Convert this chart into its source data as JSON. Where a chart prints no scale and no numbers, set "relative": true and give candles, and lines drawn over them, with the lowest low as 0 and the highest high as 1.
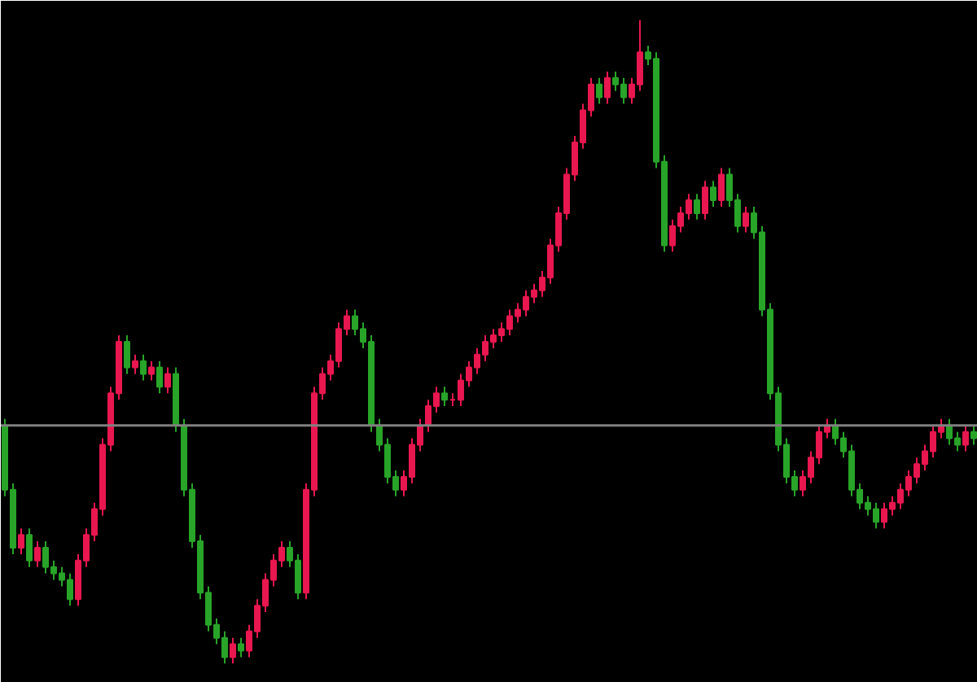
{
  "chart_data": {
    "type": "candlestick",
    "relative": true,
    "grid": false,
    "categories": [
      null,
      null,
      null,
      null,
      null,
      null,
      null,
      null,
      null,
      null,
      null,
      null,
      null,
      null,
      null,
      null,
      null,
      null,
      null,
      null,
      null,
      null,
      null,
      null,
      null,
      null,
      null,
      null,
      null,
      null,
      null,
      null,
      null,
      null,
      null,
      null,
      null,
      null,
      null,
      null,
      null,
      null,
      null,
      null,
      null,
      null,
      null,
      null,
      null,
      null,
      null,
      null,
      null,
      null,
      null,
      null,
      null,
      null,
      null,
      null,
      null,
      null,
      null,
      null,
      null,
      null,
      null,
      null,
      null,
      null,
      null,
      null,
      null,
      null,
      null,
      null,
      null,
      null,
      null,
      null,
      null,
      null,
      null,
      null,
      null,
      null,
      null,
      null,
      null,
      null,
      null,
      null,
      null,
      null,
      null,
      null,
      null,
      null,
      null,
      null,
      null,
      null,
      null,
      null,
      null,
      null,
      null,
      null,
      null,
      null,
      null,
      null,
      null,
      null,
      null,
      null,
      null,
      null,
      null,
      null
    ],
    "ohlc": [
      [
        0.37,
        0.38,
        0.26,
        0.27
      ],
      [
        0.27,
        0.28,
        0.17,
        0.18
      ],
      [
        0.18,
        0.21,
        0.17,
        0.2
      ],
      [
        0.2,
        0.21,
        0.15,
        0.16
      ],
      [
        0.16,
        0.19,
        0.15,
        0.18
      ],
      [
        0.18,
        0.19,
        0.14,
        0.15
      ],
      [
        0.15,
        0.16,
        0.13,
        0.14
      ],
      [
        0.14,
        0.15,
        0.12,
        0.13
      ],
      [
        0.13,
        0.14,
        0.09,
        0.1
      ],
      [
        0.1,
        0.17,
        0.09,
        0.16
      ],
      [
        0.16,
        0.21,
        0.15,
        0.2
      ],
      [
        0.2,
        0.25,
        0.19,
        0.24
      ],
      [
        0.24,
        0.35,
        0.23,
        0.34
      ],
      [
        0.34,
        0.43,
        0.33,
        0.42
      ],
      [
        0.42,
        0.51,
        0.41,
        0.5
      ],
      [
        0.5,
        0.51,
        0.45,
        0.46
      ],
      [
        0.46,
        0.48,
        0.45,
        0.47
      ],
      [
        0.47,
        0.48,
        0.44,
        0.45
      ],
      [
        0.45,
        0.47,
        0.44,
        0.46
      ],
      [
        0.46,
        0.47,
        0.42,
        0.43
      ],
      [
        0.43,
        0.46,
        0.42,
        0.45
      ],
      [
        0.45,
        0.46,
        0.36,
        0.37
      ],
      [
        0.37,
        0.38,
        0.26,
        0.27
      ],
      [
        0.27,
        0.28,
        0.18,
        0.19
      ],
      [
        0.19,
        0.2,
        0.1,
        0.11
      ],
      [
        0.11,
        0.12,
        0.05,
        0.06
      ],
      [
        0.06,
        0.07,
        0.03,
        0.04
      ],
      [
        0.04,
        0.05,
        0.0,
        0.01
      ],
      [
        0.01,
        0.04,
        0.0,
        0.03
      ],
      [
        0.03,
        0.04,
        0.01,
        0.02
      ],
      [
        0.02,
        0.06,
        0.01,
        0.05
      ],
      [
        0.05,
        0.1,
        0.04,
        0.09
      ],
      [
        0.09,
        0.14,
        0.08,
        0.13
      ],
      [
        0.13,
        0.17,
        0.12,
        0.16
      ],
      [
        0.16,
        0.19,
        0.15,
        0.18
      ],
      [
        0.18,
        0.19,
        0.15,
        0.16
      ],
      [
        0.16,
        0.17,
        0.1,
        0.11
      ],
      [
        0.11,
        0.28,
        0.1,
        0.27
      ],
      [
        0.27,
        0.43,
        0.26,
        0.42
      ],
      [
        0.42,
        0.46,
        0.41,
        0.45
      ],
      [
        0.45,
        0.48,
        0.44,
        0.47
      ],
      [
        0.47,
        0.53,
        0.46,
        0.52
      ],
      [
        0.52,
        0.55,
        0.51,
        0.54
      ],
      [
        0.54,
        0.55,
        0.51,
        0.52
      ],
      [
        0.52,
        0.53,
        0.49,
        0.5
      ],
      [
        0.5,
        0.51,
        0.36,
        0.37
      ],
      [
        0.37,
        0.38,
        0.33,
        0.34
      ],
      [
        0.34,
        0.35,
        0.28,
        0.29
      ],
      [
        0.29,
        0.3,
        0.26,
        0.27
      ],
      [
        0.27,
        0.3,
        0.26,
        0.29
      ],
      [
        0.29,
        0.35,
        0.28,
        0.34
      ],
      [
        0.34,
        0.38,
        0.33,
        0.37
      ],
      [
        0.37,
        0.41,
        0.36,
        0.4
      ],
      [
        0.4,
        0.43,
        0.39,
        0.42
      ],
      [
        0.42,
        0.43,
        0.4,
        0.41
      ],
      [
        0.41,
        0.42,
        0.4,
        0.41
      ],
      [
        0.41,
        0.45,
        0.4,
        0.44
      ],
      [
        0.44,
        0.47,
        0.43,
        0.46
      ],
      [
        0.46,
        0.49,
        0.45,
        0.48
      ],
      [
        0.48,
        0.51,
        0.47,
        0.5
      ],
      [
        0.5,
        0.52,
        0.49,
        0.51
      ],
      [
        0.51,
        0.53,
        0.5,
        0.52
      ],
      [
        0.52,
        0.55,
        0.51,
        0.54
      ],
      [
        0.54,
        0.56,
        0.53,
        0.55
      ],
      [
        0.55,
        0.58,
        0.54,
        0.57
      ],
      [
        0.57,
        0.59,
        0.56,
        0.58
      ],
      [
        0.58,
        0.61,
        0.57,
        0.6
      ],
      [
        0.6,
        0.66,
        0.59,
        0.65
      ],
      [
        0.65,
        0.71,
        0.64,
        0.7
      ],
      [
        0.7,
        0.77,
        0.69,
        0.76
      ],
      [
        0.76,
        0.82,
        0.75,
        0.81
      ],
      [
        0.81,
        0.87,
        0.8,
        0.86
      ],
      [
        0.86,
        0.91,
        0.85,
        0.9
      ],
      [
        0.9,
        0.91,
        0.87,
        0.88
      ],
      [
        0.88,
        0.92,
        0.87,
        0.91
      ],
      [
        0.91,
        0.92,
        0.89,
        0.9
      ],
      [
        0.9,
        0.91,
        0.87,
        0.88
      ],
      [
        0.88,
        0.91,
        0.87,
        0.9
      ],
      [
        0.9,
        1.0,
        0.89,
        0.95
      ],
      [
        0.95,
        0.96,
        0.93,
        0.94
      ],
      [
        0.94,
        0.95,
        0.77,
        0.78
      ],
      [
        0.78,
        0.79,
        0.64,
        0.65
      ],
      [
        0.65,
        0.69,
        0.64,
        0.68
      ],
      [
        0.68,
        0.71,
        0.67,
        0.7
      ],
      [
        0.7,
        0.73,
        0.69,
        0.72
      ],
      [
        0.72,
        0.73,
        0.69,
        0.7
      ],
      [
        0.7,
        0.75,
        0.69,
        0.74
      ],
      [
        0.74,
        0.75,
        0.71,
        0.72
      ],
      [
        0.72,
        0.77,
        0.71,
        0.76
      ],
      [
        0.76,
        0.77,
        0.71,
        0.72
      ],
      [
        0.72,
        0.73,
        0.67,
        0.68
      ],
      [
        0.68,
        0.71,
        0.67,
        0.7
      ],
      [
        0.7,
        0.71,
        0.66,
        0.67
      ],
      [
        0.67,
        0.68,
        0.54,
        0.55
      ],
      [
        0.55,
        0.56,
        0.41,
        0.42
      ],
      [
        0.42,
        0.43,
        0.33,
        0.34
      ],
      [
        0.34,
        0.35,
        0.28,
        0.29
      ],
      [
        0.29,
        0.3,
        0.26,
        0.27
      ],
      [
        0.27,
        0.3,
        0.26,
        0.29
      ],
      [
        0.29,
        0.33,
        0.28,
        0.32
      ],
      [
        0.32,
        0.37,
        0.31,
        0.36
      ],
      [
        0.36,
        0.38,
        0.35,
        0.37
      ],
      [
        0.37,
        0.38,
        0.34,
        0.35
      ],
      [
        0.35,
        0.36,
        0.32,
        0.33
      ],
      [
        0.33,
        0.34,
        0.26,
        0.27
      ],
      [
        0.27,
        0.28,
        0.24,
        0.25
      ],
      [
        0.25,
        0.26,
        0.23,
        0.24
      ],
      [
        0.24,
        0.25,
        0.21,
        0.22
      ],
      [
        0.22,
        0.25,
        0.21,
        0.24
      ],
      [
        0.24,
        0.26,
        0.23,
        0.25
      ],
      [
        0.25,
        0.28,
        0.24,
        0.27
      ],
      [
        0.27,
        0.3,
        0.26,
        0.29
      ],
      [
        0.29,
        0.32,
        0.28,
        0.31
      ],
      [
        0.31,
        0.34,
        0.3,
        0.33
      ],
      [
        0.33,
        0.37,
        0.32,
        0.36
      ],
      [
        0.36,
        0.38,
        0.35,
        0.37
      ],
      [
        0.37,
        0.38,
        0.34,
        0.35
      ],
      [
        0.35,
        0.36,
        0.33,
        0.34
      ],
      [
        0.34,
        0.37,
        0.33,
        0.36
      ],
      [
        0.36,
        0.37,
        0.34,
        0.35
      ]
    ],
    "colors": [
      "#28a428",
      "#28a428",
      "#e8174f",
      "#28a428",
      "#e8174f",
      "#28a428",
      "#28a428",
      "#28a428",
      "#28a428",
      "#e8174f",
      "#e8174f",
      "#e8174f",
      "#e8174f",
      "#e8174f",
      "#e8174f",
      "#28a428",
      "#e8174f",
      "#28a428",
      "#e8174f",
      "#28a428",
      "#e8174f",
      "#28a428",
      "#28a428",
      "#28a428",
      "#28a428",
      "#28a428",
      "#28a428",
      "#28a428",
      "#e8174f",
      "#28a428",
      "#e8174f",
      "#e8174f",
      "#e8174f",
      "#e8174f",
      "#e8174f",
      "#28a428",
      "#28a428",
      "#e8174f",
      "#e8174f",
      "#e8174f",
      "#e8174f",
      "#e8174f",
      "#e8174f",
      "#28a428",
      "#28a428",
      "#28a428",
      "#28a428",
      "#28a428",
      "#28a428",
      "#e8174f",
      "#e8174f",
      "#e8174f",
      "#e8174f",
      "#e8174f",
      "#28a428",
      "#e8174f",
      "#e8174f",
      "#e8174f",
      "#e8174f",
      "#e8174f",
      "#e8174f",
      "#e8174f",
      "#e8174f",
      "#e8174f",
      "#e8174f",
      "#e8174f",
      "#e8174f",
      "#e8174f",
      "#e8174f",
      "#e8174f",
      "#e8174f",
      "#e8174f",
      "#e8174f",
      "#28a428",
      "#e8174f",
      "#28a428",
      "#28a428",
      "#e8174f",
      "#e8174f",
      "#28a428",
      "#28a428",
      "#28a428",
      "#e8174f",
      "#e8174f",
      "#e8174f",
      "#28a428",
      "#e8174f",
      "#28a428",
      "#e8174f",
      "#28a428",
      "#28a428",
      "#e8174f",
      "#28a428",
      "#28a428",
      "#28a428",
      "#28a428",
      "#28a428",
      "#28a428",
      "#e8174f",
      "#e8174f",
      "#e8174f",
      "#e8174f",
      "#28a428",
      "#28a428",
      "#28a428",
      "#28a428",
      "#28a428",
      "#28a428",
      "#e8174f",
      "#e8174f",
      "#e8174f",
      "#e8174f",
      "#e8174f",
      "#e8174f",
      "#e8174f",
      "#e8174f",
      "#28a428",
      "#28a428",
      "#e8174f",
      "#28a428"
    ],
    "ref_lines": [
      {
        "axis": "y",
        "value": 0.37,
        "color": "#808080"
      }
    ]
  }
}
